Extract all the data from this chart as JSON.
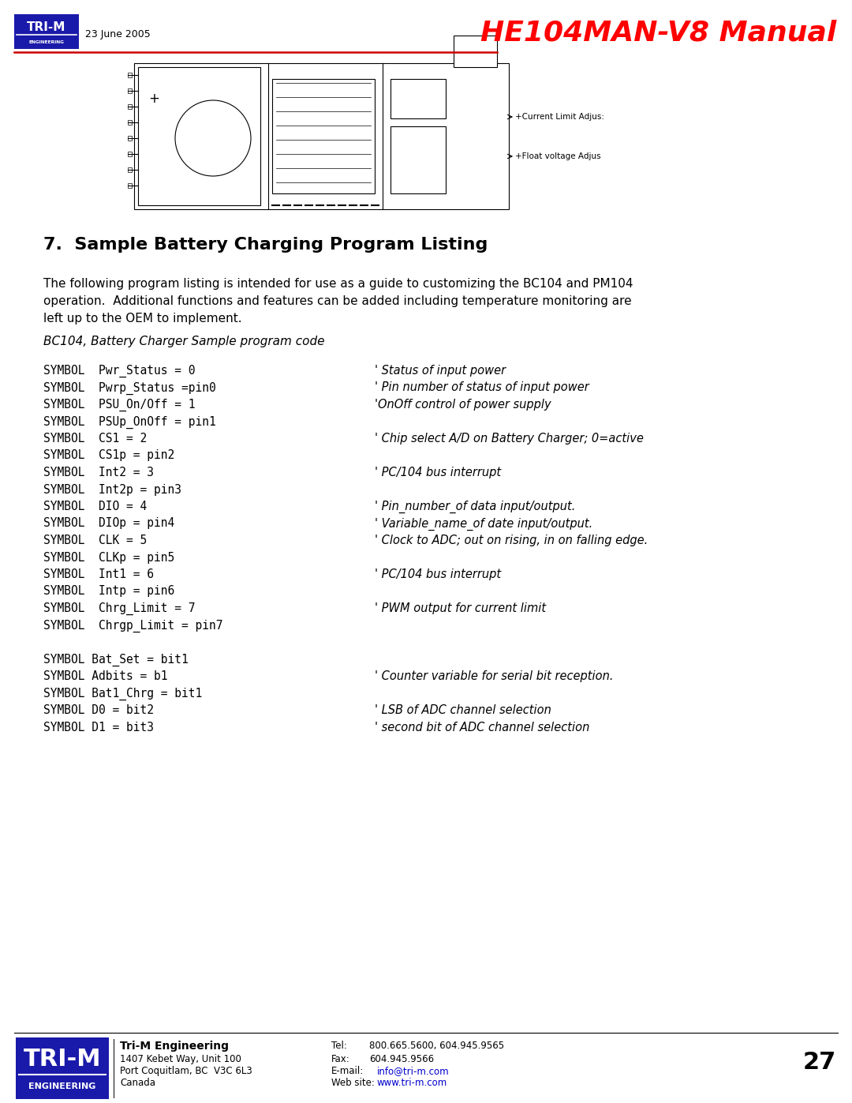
{
  "page_title": "HE104MAN-V8 Manual",
  "date": "23 June 2005",
  "section_title": "7.  Sample Battery Charging Program Listing",
  "intro_lines": [
    "The following program listing is intended for use as a guide to customizing the BC104 and PM104",
    "operation.  Additional functions and features can be added including temperature monitoring are",
    "left up to the OEM to implement."
  ],
  "italic_header": "BC104, Battery Charger Sample program code",
  "code_lines": [
    [
      "SYMBOL  Pwr_Status = 0",
      "' Status of input power"
    ],
    [
      "SYMBOL  Pwrp_Status =pin0",
      "' Pin number of status of input power"
    ],
    [
      "SYMBOL  PSU_On/Off = 1",
      "'OnOff control of power supply"
    ],
    [
      "SYMBOL  PSUp_OnOff = pin1",
      ""
    ],
    [
      "SYMBOL  CS1 = 2",
      "' Chip select A/D on Battery Charger; 0=active"
    ],
    [
      "SYMBOL  CS1p = pin2",
      ""
    ],
    [
      "SYMBOL  Int2 = 3",
      "' PC/104 bus interrupt"
    ],
    [
      "SYMBOL  Int2p = pin3",
      ""
    ],
    [
      "SYMBOL  DIO = 4",
      "' Pin_number_of data input/output."
    ],
    [
      "SYMBOL  DIOp = pin4",
      "' Variable_name_of date input/output."
    ],
    [
      "SYMBOL  CLK = 5",
      "' Clock to ADC; out on rising, in on falling edge."
    ],
    [
      "SYMBOL  CLKp = pin5",
      ""
    ],
    [
      "SYMBOL  Int1 = 6",
      "' PC/104 bus interrupt"
    ],
    [
      "SYMBOL  Intp = pin6",
      ""
    ],
    [
      "SYMBOL  Chrg_Limit = 7",
      "' PWM output for current limit"
    ],
    [
      "SYMBOL  Chrgp_Limit = pin7",
      ""
    ],
    [
      "",
      ""
    ],
    [
      "SYMBOL Bat_Set = bit1",
      ""
    ],
    [
      "SYMBOL Adbits = b1",
      "' Counter variable for serial bit reception."
    ],
    [
      "SYMBOL Bat1_Chrg = bit1",
      ""
    ],
    [
      "SYMBOL D0 = bit2",
      "' LSB of ADC channel selection"
    ],
    [
      "SYMBOL D1 = bit3",
      "' second bit of ADC channel selection"
    ]
  ],
  "footer_company": "Tri-M Engineering",
  "footer_address1": "1407 Kebet Way, Unit 100",
  "footer_address2": "Port Coquitlam, BC  V3C 6L3",
  "footer_address3": "Canada",
  "footer_tel_label": "Tel:",
  "footer_tel": "800.665.5600, 604.945.9565",
  "footer_fax_label": "Fax:",
  "footer_fax": "604.945.9566",
  "footer_email_label": "E-mail:",
  "footer_email": "info@tri-m.com",
  "footer_web_label": "Web site:",
  "footer_web": "www.tri-m.com",
  "page_number": "27",
  "bg_color": "#ffffff",
  "text_color": "#000000",
  "title_color": "#ff0000",
  "logo_bg": "#1a1aaa",
  "header_line_color": "#cc0000"
}
